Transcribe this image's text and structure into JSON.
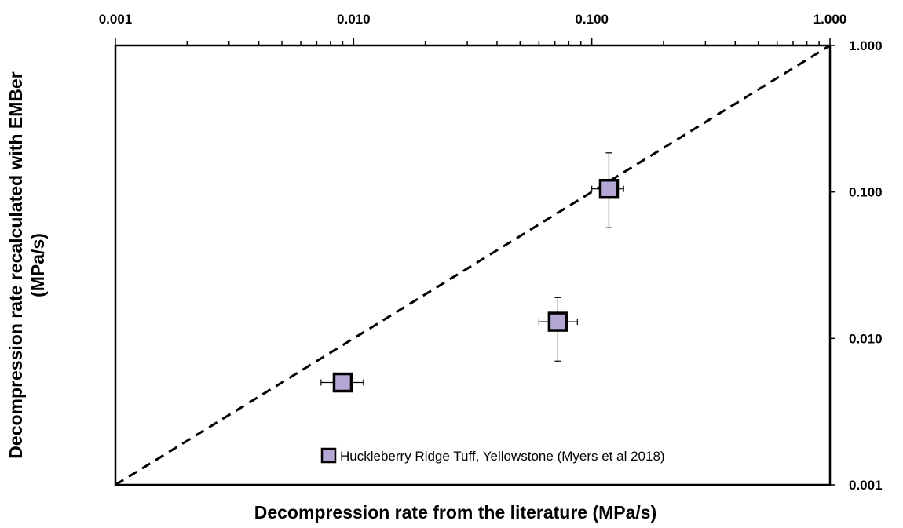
{
  "chart_data": {
    "type": "scatter",
    "xlabel": "Decompression rate from the literature (MPa/s)",
    "ylabel_lines": [
      "Decompression rate recalculated with EMBer",
      "(MPa/s)"
    ],
    "x_scale": "log",
    "y_scale": "log",
    "xlim": [
      0.001,
      1.0
    ],
    "ylim": [
      0.001,
      1.0
    ],
    "x_tick_labels": [
      "0.001",
      "0.010",
      "0.100",
      "1.000"
    ],
    "y_tick_labels": [
      "0.001",
      "0.010",
      "0.100",
      "1.000"
    ],
    "x_axis_position": "top",
    "y_axis_position": "right",
    "grid": false,
    "reference_line": {
      "style": "dashed",
      "from": [
        0.001,
        0.001
      ],
      "to": [
        1.0,
        1.0
      ]
    },
    "legend_position": "bottom-right",
    "marker_color": "#b4a7d6",
    "series": [
      {
        "name": "Huckleberry Ridge Tuff, Yellowstone (Myers et al 2018)",
        "points": [
          {
            "x": 0.009,
            "y": 0.005,
            "x_err": [
              0.0073,
              0.011
            ],
            "y_err": null
          },
          {
            "x": 0.072,
            "y": 0.013,
            "x_err": [
              0.06,
              0.087
            ],
            "y_err": [
              0.007,
              0.019
            ]
          },
          {
            "x": 0.118,
            "y": 0.105,
            "x_err": [
              0.1,
              0.136
            ],
            "y_err": [
              0.057,
              0.185
            ]
          }
        ]
      }
    ]
  }
}
